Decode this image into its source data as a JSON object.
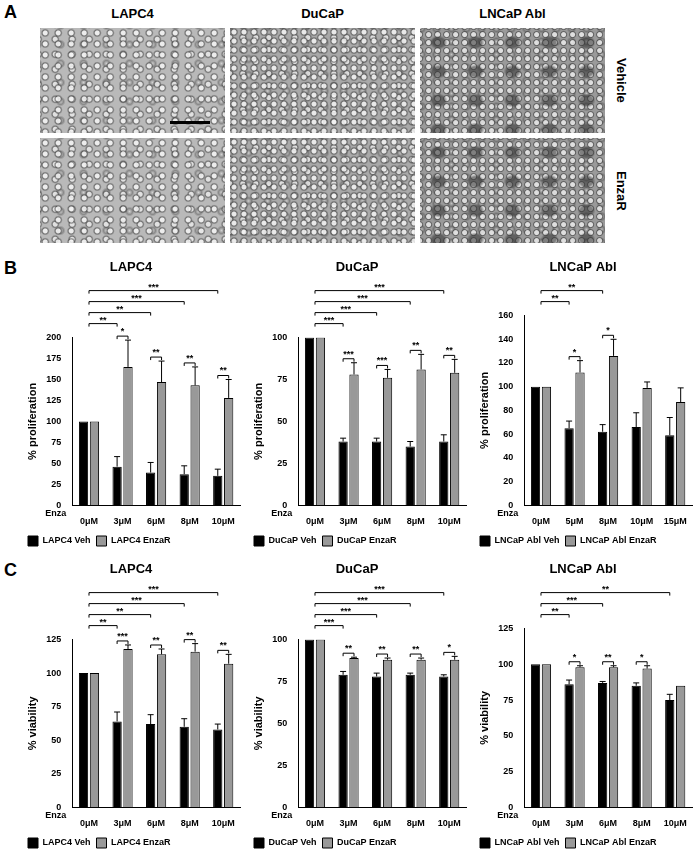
{
  "panels": [
    {
      "label": "A",
      "columns": [
        "LAPC4",
        "DuCaP",
        "LNCaP Abl"
      ],
      "rows": [
        "Vehicle",
        "EnzaR"
      ]
    },
    {
      "label": "B"
    },
    {
      "label": "C"
    }
  ],
  "chart_data": [
    {
      "type": "bar",
      "title": "LAPC4",
      "y_label": "% proliferation",
      "x_label": "Enza",
      "categories": [
        "0μM",
        "3μM",
        "6μM",
        "8μM",
        "10μM"
      ],
      "series": [
        {
          "name": "LAPC4 Veh",
          "color": "#000000",
          "values": [
            100,
            46,
            39,
            37,
            35
          ],
          "errors": [
            0,
            12,
            12,
            10,
            8
          ]
        },
        {
          "name": "LAPC4 EnzaR",
          "color": "#999999",
          "values": [
            100,
            165,
            147,
            143,
            128
          ],
          "errors": [
            0,
            32,
            25,
            22,
            22
          ]
        }
      ],
      "ylim": [
        0,
        200
      ],
      "yticks": [
        0,
        25,
        50,
        75,
        100,
        125,
        150,
        175,
        200
      ],
      "grid": false,
      "legend": "bottom",
      "comparisons": [
        {
          "categories": [
            0,
            1
          ],
          "label": "**"
        },
        {
          "categories": [
            0,
            2
          ],
          "label": "**"
        },
        {
          "categories": [
            0,
            3
          ],
          "label": "***"
        },
        {
          "categories": [
            0,
            4
          ],
          "label": "***"
        }
      ],
      "pair_comparisons": [
        {
          "category": 1,
          "label": "*"
        },
        {
          "category": 2,
          "label": "**"
        },
        {
          "category": 3,
          "label": "**"
        },
        {
          "category": 4,
          "label": "**"
        }
      ]
    },
    {
      "type": "bar",
      "title": "DuCaP",
      "y_label": "% proliferation",
      "x_label": "Enza",
      "categories": [
        "0μM",
        "3μM",
        "6μM",
        "8μM",
        "10μM"
      ],
      "series": [
        {
          "name": "DuCaP Veh",
          "color": "#000000",
          "values": [
            100,
            38,
            38,
            35,
            38
          ],
          "errors": [
            0,
            2,
            2,
            3,
            4
          ]
        },
        {
          "name": "DuCaP EnzaR",
          "color": "#999999",
          "values": [
            100,
            78,
            76,
            81,
            79
          ],
          "errors": [
            0,
            7,
            5,
            9,
            8
          ]
        }
      ],
      "ylim": [
        0,
        100
      ],
      "yticks": [
        0,
        25,
        50,
        75,
        100
      ],
      "grid": false,
      "legend": "bottom",
      "comparisons": [
        {
          "categories": [
            0,
            1
          ],
          "label": "***"
        },
        {
          "categories": [
            0,
            2
          ],
          "label": "***"
        },
        {
          "categories": [
            0,
            3
          ],
          "label": "***"
        },
        {
          "categories": [
            0,
            4
          ],
          "label": "***"
        }
      ],
      "pair_comparisons": [
        {
          "category": 1,
          "label": "***"
        },
        {
          "category": 2,
          "label": "***"
        },
        {
          "category": 3,
          "label": "**"
        },
        {
          "category": 4,
          "label": "**"
        }
      ]
    },
    {
      "type": "bar",
      "title": "LNCaP Abl",
      "y_label": "% proliferation",
      "x_label": "Enza",
      "categories": [
        "0μM",
        "5μM",
        "8μM",
        "10μM",
        "15μM"
      ],
      "series": [
        {
          "name": "LNCaP Abl Veh",
          "color": "#000000",
          "values": [
            100,
            65,
            62,
            66,
            59
          ],
          "errors": [
            0,
            6,
            6,
            12,
            15
          ]
        },
        {
          "name": "LNCaP Abl EnzaR",
          "color": "#999999",
          "values": [
            100,
            112,
            126,
            99,
            87
          ],
          "errors": [
            0,
            10,
            14,
            5,
            12
          ]
        }
      ],
      "ylim": [
        0,
        160
      ],
      "yticks": [
        0,
        20,
        40,
        60,
        80,
        100,
        120,
        140,
        160
      ],
      "grid": false,
      "legend": "bottom",
      "comparisons": [
        {
          "categories": [
            0,
            1
          ],
          "label": "**"
        },
        {
          "categories": [
            0,
            2
          ],
          "label": "**"
        }
      ],
      "pair_comparisons": [
        {
          "category": 1,
          "label": "*"
        },
        {
          "category": 2,
          "label": "*"
        }
      ]
    },
    {
      "type": "bar",
      "title": "LAPC4",
      "y_label": "% viability",
      "x_label": "Enza",
      "categories": [
        "0μM",
        "3μM",
        "6μM",
        "8μM",
        "10μM"
      ],
      "series": [
        {
          "name": "LAPC4 Veh",
          "color": "#000000",
          "values": [
            100,
            64,
            62,
            60,
            58
          ],
          "errors": [
            0,
            7,
            7,
            6,
            4
          ]
        },
        {
          "name": "LAPC4 EnzaR",
          "color": "#999999",
          "values": [
            100,
            118,
            114,
            116,
            107
          ],
          "errors": [
            0,
            3,
            4,
            6,
            7
          ]
        }
      ],
      "ylim": [
        0,
        125
      ],
      "yticks": [
        0,
        25,
        50,
        75,
        100,
        125
      ],
      "grid": false,
      "legend": "bottom",
      "comparisons": [
        {
          "categories": [
            0,
            1
          ],
          "label": "**"
        },
        {
          "categories": [
            0,
            2
          ],
          "label": "**"
        },
        {
          "categories": [
            0,
            3
          ],
          "label": "***"
        },
        {
          "categories": [
            0,
            4
          ],
          "label": "***"
        }
      ],
      "pair_comparisons": [
        {
          "category": 1,
          "label": "***"
        },
        {
          "category": 2,
          "label": "**"
        },
        {
          "category": 3,
          "label": "**"
        },
        {
          "category": 4,
          "label": "**"
        }
      ]
    },
    {
      "type": "bar",
      "title": "DuCaP",
      "y_label": "% viability",
      "x_label": "Enza",
      "categories": [
        "0μM",
        "3μM",
        "6μM",
        "8μM",
        "10μM"
      ],
      "series": [
        {
          "name": "DuCaP Veh",
          "color": "#000000",
          "values": [
            100,
            79,
            78,
            79,
            78
          ],
          "errors": [
            0,
            2,
            2,
            1,
            1
          ]
        },
        {
          "name": "DuCaP EnzaR",
          "color": "#999999",
          "values": [
            100,
            89,
            88,
            88,
            88
          ],
          "errors": [
            0,
            0.5,
            1,
            1,
            2
          ]
        }
      ],
      "ylim": [
        0,
        100
      ],
      "yticks": [
        0,
        25,
        50,
        75,
        100
      ],
      "grid": false,
      "legend": "bottom",
      "comparisons": [
        {
          "categories": [
            0,
            1
          ],
          "label": "***"
        },
        {
          "categories": [
            0,
            2
          ],
          "label": "***"
        },
        {
          "categories": [
            0,
            3
          ],
          "label": "***"
        },
        {
          "categories": [
            0,
            4
          ],
          "label": "***"
        }
      ],
      "pair_comparisons": [
        {
          "category": 1,
          "label": "**"
        },
        {
          "category": 2,
          "label": "**"
        },
        {
          "category": 3,
          "label": "**"
        },
        {
          "category": 4,
          "label": "*"
        }
      ]
    },
    {
      "type": "bar",
      "title": "LNCaP Abl",
      "y_label": "% viability",
      "x_label": "Enza",
      "categories": [
        "0μM",
        "3μM",
        "6μM",
        "8μM",
        "10μM"
      ],
      "series": [
        {
          "name": "LNCaP Abl Veh",
          "color": "#000000",
          "values": [
            100,
            86,
            87,
            85,
            75
          ],
          "errors": [
            0,
            3,
            1,
            2,
            4
          ]
        },
        {
          "name": "LNCaP Abl EnzaR",
          "color": "#999999",
          "values": [
            100,
            98,
            98,
            97,
            85
          ],
          "errors": [
            0,
            1,
            1,
            2,
            0
          ]
        }
      ],
      "ylim": [
        0,
        125
      ],
      "yticks": [
        0,
        25,
        50,
        75,
        100,
        125
      ],
      "grid": false,
      "legend": "bottom",
      "comparisons": [
        {
          "categories": [
            0,
            1
          ],
          "label": "**"
        },
        {
          "categories": [
            0,
            2
          ],
          "label": "***"
        },
        {
          "categories": [
            0,
            4
          ],
          "label": "**"
        }
      ],
      "pair_comparisons": [
        {
          "category": 1,
          "label": "*"
        },
        {
          "category": 2,
          "label": "**"
        },
        {
          "category": 3,
          "label": "*"
        }
      ]
    }
  ]
}
